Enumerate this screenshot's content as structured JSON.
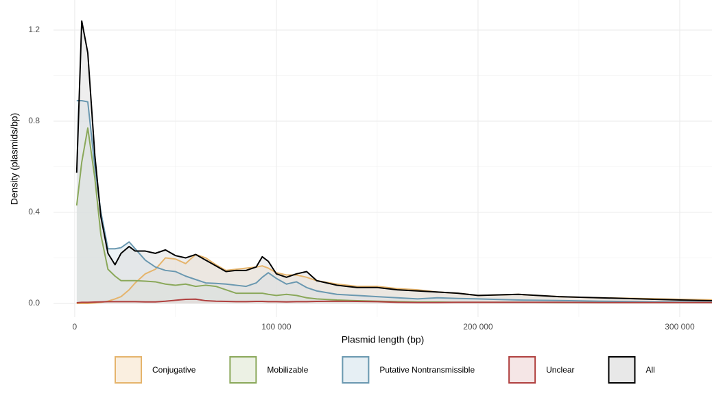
{
  "chart_data": {
    "type": "line",
    "area": true,
    "xlabel": "Plasmid length (bp)",
    "ylabel": "Density (plasmids/bp)",
    "x": [
      1000,
      3500,
      6500,
      10000,
      13000,
      16500,
      20000,
      23000,
      27000,
      30000,
      35000,
      40000,
      45000,
      50000,
      55000,
      60000,
      65000,
      70000,
      75000,
      80000,
      85000,
      90000,
      93000,
      96000,
      100000,
      105000,
      110000,
      115000,
      120000,
      130000,
      140000,
      150000,
      160000,
      170000,
      180000,
      190000,
      200000,
      220000,
      240000,
      260000,
      280000,
      300000,
      316000
    ],
    "series": [
      {
        "name": "Conjugative",
        "color": "#e5b46c",
        "fill": "#f6e5cc",
        "values": [
          0,
          0,
          0,
          0.002,
          0.005,
          0.01,
          0.02,
          0.03,
          0.06,
          0.09,
          0.13,
          0.15,
          0.2,
          0.195,
          0.175,
          0.215,
          0.2,
          0.17,
          0.145,
          0.15,
          0.155,
          0.16,
          0.165,
          0.155,
          0.135,
          0.125,
          0.125,
          0.115,
          0.1,
          0.085,
          0.075,
          0.075,
          0.065,
          0.06,
          0.05,
          0.045,
          0.035,
          0.04,
          0.03,
          0.025,
          0.022,
          0.018,
          0.016
        ]
      },
      {
        "name": "Mobilizable",
        "color": "#8aa85a",
        "fill": "#dfe8d2",
        "values": [
          0.43,
          0.62,
          0.77,
          0.55,
          0.3,
          0.15,
          0.12,
          0.1,
          0.1,
          0.1,
          0.098,
          0.095,
          0.085,
          0.08,
          0.085,
          0.075,
          0.08,
          0.075,
          0.06,
          0.045,
          0.045,
          0.045,
          0.045,
          0.04,
          0.035,
          0.04,
          0.035,
          0.025,
          0.02,
          0.015,
          0.012,
          0.01,
          0.008,
          0.006,
          0.006,
          0.005,
          0.005,
          0.005,
          0.004,
          0.004,
          0.004,
          0.004,
          0.004
        ]
      },
      {
        "name": "Putative Nontransmissible",
        "color": "#6a98b0",
        "fill": "#d6e4ec",
        "values": [
          0.89,
          0.89,
          0.885,
          0.6,
          0.4,
          0.24,
          0.24,
          0.245,
          0.27,
          0.24,
          0.19,
          0.16,
          0.145,
          0.14,
          0.12,
          0.105,
          0.09,
          0.088,
          0.085,
          0.08,
          0.075,
          0.09,
          0.115,
          0.135,
          0.11,
          0.085,
          0.095,
          0.07,
          0.055,
          0.04,
          0.035,
          0.03,
          0.025,
          0.02,
          0.025,
          0.022,
          0.02,
          0.015,
          0.013,
          0.01,
          0.008,
          0.006,
          0.005
        ]
      },
      {
        "name": "Unclear",
        "color": "#b0403f",
        "fill": "#efd5d5",
        "values": [
          0.003,
          0.005,
          0.005,
          0.006,
          0.007,
          0.008,
          0.008,
          0.008,
          0.008,
          0.008,
          0.007,
          0.007,
          0.01,
          0.014,
          0.018,
          0.019,
          0.012,
          0.01,
          0.009,
          0.008,
          0.008,
          0.009,
          0.009,
          0.008,
          0.008,
          0.007,
          0.008,
          0.008,
          0.009,
          0.01,
          0.009,
          0.008,
          0.005,
          0.004,
          0.004,
          0.005,
          0.005,
          0.005,
          0.005,
          0.004,
          0.004,
          0.004,
          0.004
        ]
      },
      {
        "name": "All",
        "color": "#000000",
        "fill": "#d9d9d9",
        "values": [
          0.574,
          1.24,
          1.1,
          0.65,
          0.38,
          0.22,
          0.17,
          0.22,
          0.25,
          0.23,
          0.23,
          0.22,
          0.235,
          0.21,
          0.2,
          0.215,
          0.19,
          0.165,
          0.14,
          0.145,
          0.145,
          0.16,
          0.205,
          0.185,
          0.13,
          0.115,
          0.13,
          0.14,
          0.1,
          0.08,
          0.07,
          0.07,
          0.06,
          0.055,
          0.05,
          0.045,
          0.035,
          0.04,
          0.03,
          0.025,
          0.02,
          0.015,
          0.012
        ]
      }
    ],
    "xlim": [
      -10500,
      316000
    ],
    "ylim": [
      -0.06,
      1.332
    ],
    "xticks": [
      0,
      {
        "value": 100000,
        "label": "100 000"
      },
      {
        "value": 200000,
        "label": "200 000"
      },
      {
        "value": 300000,
        "label": "300 000"
      }
    ],
    "yticks": [
      {
        "value": 0,
        "label": "0.0"
      },
      0.4,
      0.8,
      1.2
    ],
    "xminorticks": [
      50000,
      150000,
      250000
    ],
    "yminorticks": [
      0.2,
      0.6,
      1.0
    ],
    "grid": true,
    "legend": "bottom"
  }
}
